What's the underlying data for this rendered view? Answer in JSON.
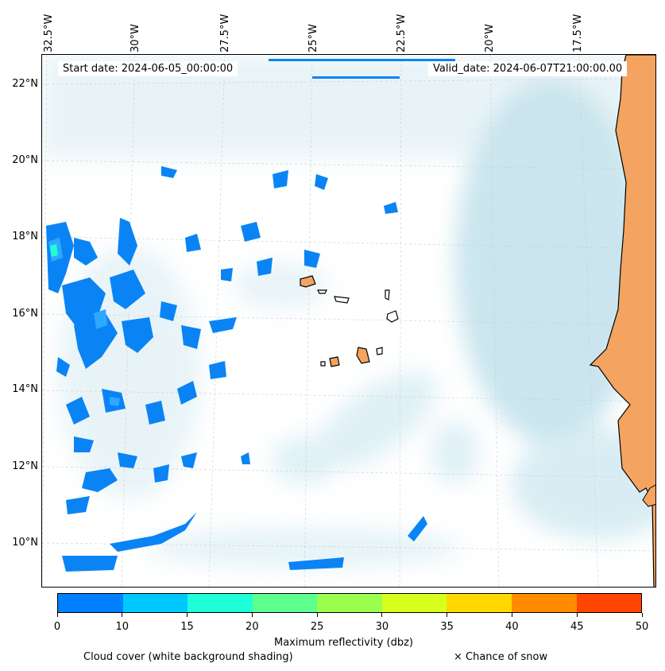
{
  "map": {
    "info": {
      "start_date": "Start date: 2024-06-05_00:00:00",
      "valid_date": "Valid_date: 2024-06-07T21:00:00.00"
    },
    "longitude_labels": [
      "32.5°W",
      "30°W",
      "27.5°W",
      "25°W",
      "22.5°W",
      "20°W",
      "17.5°W"
    ],
    "latitude_labels": [
      "22°N",
      "20°N",
      "18°N",
      "16°N",
      "14°N",
      "12°N",
      "10°N"
    ],
    "colors": {
      "land": "#f4a460",
      "cloud_shading": "#add8e6",
      "coastline": "#000000",
      "gridline": "#bbbbbb"
    }
  },
  "colorbar": {
    "label": "Maximum reflectivity (dbz)",
    "ticks": [
      "0",
      "10",
      "15",
      "20",
      "25",
      "30",
      "35",
      "40",
      "45",
      "50"
    ],
    "colors": [
      "#0080ff",
      "#00c8ff",
      "#1effd8",
      "#5fff8f",
      "#9bff4f",
      "#d8ff1e",
      "#ffd800",
      "#ff8c00",
      "#ff4500"
    ]
  },
  "legend": {
    "cloud_cover": "Cloud cover (white background shading)",
    "snow": "× Chance of snow"
  }
}
